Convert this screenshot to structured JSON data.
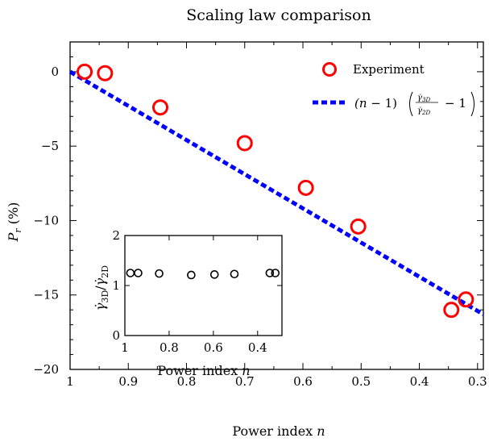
{
  "chart_data": [
    {
      "type": "scatter",
      "title": "Scaling law comparison",
      "xlabel": "Power index n",
      "ylabel": "P_r (%)",
      "xlim": [
        1.0,
        0.29
      ],
      "ylim": [
        -20,
        2
      ],
      "x_ticks": [
        "1",
        "0.9",
        "0.8",
        "0.7",
        "0.6",
        "0.5",
        "0.4",
        "0.3"
      ],
      "y_ticks": [
        "0",
        "−5",
        "−10",
        "−15",
        "−20"
      ],
      "grid": false,
      "legend_position": "top-right",
      "series": [
        {
          "name": "Experiment",
          "style": "red open circles",
          "color": "#ff0000",
          "x": [
            0.975,
            0.94,
            0.845,
            0.7,
            0.595,
            0.505,
            0.345,
            0.32
          ],
          "y": [
            0.0,
            -0.1,
            -2.4,
            -4.8,
            -7.8,
            -10.4,
            -16.0,
            -15.3
          ]
        },
        {
          "name": "(n − 1)(γ̇3D/γ̇2D − 1)",
          "style": "blue dashed line",
          "color": "#0000ff",
          "x": [
            1.0,
            0.29
          ],
          "y": [
            0.0,
            -16.3
          ]
        }
      ]
    },
    {
      "type": "scatter",
      "xlabel": "Power index n",
      "ylabel": "γ̇3D/γ̇2D",
      "xlim": [
        1.0,
        0.29
      ],
      "ylim": [
        0,
        2
      ],
      "x_ticks": [
        "1",
        "0.8",
        "0.6",
        "0.4"
      ],
      "y_ticks": [
        "0",
        "1",
        "2"
      ],
      "series": [
        {
          "style": "black open circles",
          "color": "#000000",
          "x": [
            0.975,
            0.94,
            0.845,
            0.7,
            0.595,
            0.505,
            0.345,
            0.32
          ],
          "y": [
            1.25,
            1.25,
            1.24,
            1.21,
            1.22,
            1.23,
            1.25,
            1.25
          ]
        }
      ]
    }
  ]
}
